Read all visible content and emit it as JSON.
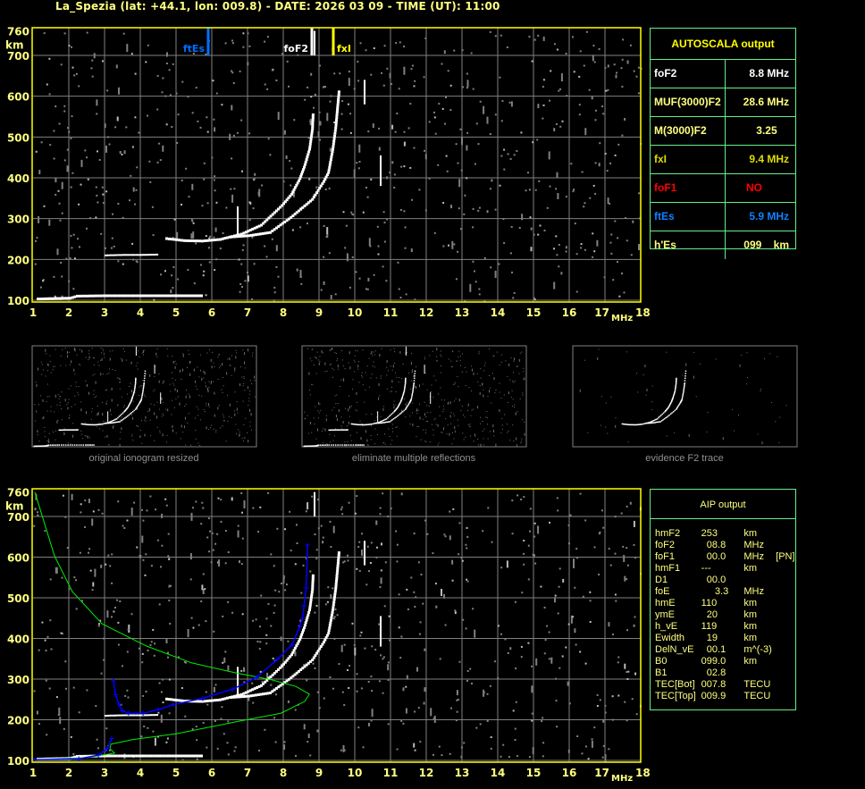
{
  "title": "La_Spezia (lat: +44.1, lon: 009.8) - DATE: 2026 03 09 - TIME (UT): 11:00",
  "colors": {
    "axis": "#ffff00",
    "grid": "#808080",
    "trace": "#ffffff",
    "noise": "#808080",
    "profile": "#0000ff",
    "model": "#00ee00",
    "ftEs": "#0070ff",
    "foF2": "#ffffff",
    "fxI": "#ffff00",
    "foF1": "#ff0000",
    "table_border": "#66ee88"
  },
  "chart_data": [
    {
      "type": "scatter",
      "name": "ionogram-autoscala",
      "xlabel": "MHz",
      "ylabel": "km",
      "xlim": [
        1,
        18
      ],
      "ylim": [
        100,
        760
      ],
      "xticks": [
        "1",
        "2",
        "3",
        "4",
        "5",
        "6",
        "7",
        "8",
        "9",
        "10",
        "11",
        "12",
        "13",
        "14",
        "15",
        "16",
        "17",
        "18"
      ],
      "yticks": [
        "100",
        "200",
        "300",
        "400",
        "500",
        "600",
        "700",
        "760"
      ],
      "grid": true,
      "markers": [
        {
          "label": "ftEs",
          "freq": 5.9,
          "color": "#0070ff"
        },
        {
          "label": "foF2",
          "freq": 8.8,
          "color": "#ffffff"
        },
        {
          "label": "fxI",
          "freq": 9.4,
          "color": "#ffff00"
        }
      ],
      "traces": {
        "es": [
          [
            1.1,
            103
          ],
          [
            1.5,
            104
          ],
          [
            2.0,
            105
          ],
          [
            2.2,
            110
          ],
          [
            3,
            111
          ],
          [
            4,
            111
          ],
          [
            5,
            111
          ],
          [
            5.75,
            111
          ]
        ],
        "f1": [
          [
            3,
            210
          ],
          [
            3.5,
            211
          ],
          [
            4,
            211
          ],
          [
            4.5,
            212
          ]
        ],
        "o": [
          [
            4.7,
            251
          ],
          [
            5.2,
            246
          ],
          [
            5.7,
            245
          ],
          [
            6.2,
            249
          ],
          [
            6.8,
            262
          ],
          [
            7.35,
            284
          ],
          [
            7.93,
            332
          ],
          [
            8.2,
            360
          ],
          [
            8.43,
            398
          ],
          [
            8.55,
            426
          ],
          [
            8.7,
            470
          ],
          [
            8.78,
            520
          ],
          [
            8.8,
            560
          ]
        ],
        "x": [
          [
            6.5,
            255
          ],
          [
            7.0,
            258
          ],
          [
            7.6,
            266
          ],
          [
            8.18,
            303
          ],
          [
            8.78,
            347
          ],
          [
            9.1,
            391
          ],
          [
            9.23,
            413
          ],
          [
            9.35,
            470
          ],
          [
            9.43,
            522
          ],
          [
            9.53,
            617
          ]
        ],
        "spikes": [
          [
            6.7,
            260,
            330
          ],
          [
            10.25,
            580,
            640
          ],
          [
            10.7,
            380,
            455
          ],
          [
            8.85,
            700,
            760
          ]
        ]
      }
    },
    {
      "type": "scatter",
      "name": "ionogram-aip",
      "xlabel": "MHz",
      "ylabel": "km",
      "xlim": [
        1,
        18
      ],
      "ylim": [
        100,
        760
      ],
      "xticks": [
        "1",
        "2",
        "3",
        "4",
        "5",
        "6",
        "7",
        "8",
        "9",
        "10",
        "11",
        "12",
        "13",
        "14",
        "15",
        "16",
        "17",
        "18"
      ],
      "yticks": [
        "100",
        "200",
        "300",
        "400",
        "500",
        "600",
        "700",
        "760"
      ],
      "grid": true,
      "model_curve": [
        [
          1.05,
          760
        ],
        [
          1.6,
          603
        ],
        [
          2.1,
          515
        ],
        [
          2.93,
          436
        ],
        [
          4.18,
          381
        ],
        [
          5.43,
          340
        ],
        [
          6.68,
          315
        ],
        [
          7.68,
          298
        ],
        [
          8.35,
          282
        ],
        [
          8.73,
          263
        ],
        [
          8.6,
          245
        ],
        [
          7.93,
          216
        ],
        [
          6.68,
          195
        ],
        [
          5.03,
          166
        ],
        [
          3.78,
          151
        ],
        [
          3.18,
          140
        ],
        [
          3.15,
          129
        ],
        [
          3.28,
          118
        ],
        [
          2.53,
          107
        ],
        [
          1.03,
          102
        ]
      ],
      "profile": [
        [
          1.03,
          102
        ],
        [
          2.28,
          104
        ],
        [
          2.83,
          113
        ],
        [
          3.08,
          130
        ],
        [
          3.2,
          154
        ],
        null,
        [
          3.25,
          296
        ],
        [
          3.31,
          261
        ],
        [
          3.4,
          238
        ],
        [
          3.5,
          222
        ],
        [
          3.67,
          216
        ],
        [
          4.08,
          216
        ],
        [
          4.5,
          225
        ],
        [
          4.92,
          237
        ],
        [
          5.75,
          253
        ],
        [
          6.58,
          275
        ],
        [
          7.25,
          304
        ],
        [
          7.83,
          348
        ],
        [
          8.25,
          385
        ],
        [
          8.46,
          429
        ],
        [
          8.54,
          451
        ],
        [
          8.58,
          480
        ],
        [
          8.64,
          524
        ],
        [
          8.68,
          630
        ]
      ]
    }
  ],
  "thumbnails": [
    {
      "label": "original ionogram resized"
    },
    {
      "label": "eliminate multiple reflections"
    },
    {
      "label": "evidence F2 trace"
    }
  ],
  "autoscala": {
    "title": "AUTOSCALA output",
    "rows": [
      {
        "key": "foF2",
        "value": "8.8 MHz",
        "color": "#ffffff"
      },
      {
        "key": "MUF(3000)F2",
        "value": "28.6 MHz",
        "color": "#ffff80"
      },
      {
        "key": "M(3000)F2",
        "value": "3.25    ",
        "color": "#ffff80"
      },
      {
        "key": "fxI",
        "value": "9.4 MHz",
        "color": "#dddd00"
      },
      {
        "key": "foF1",
        "value": "NO         ",
        "color": "#ff0000"
      },
      {
        "key": "ftEs",
        "value": "5.9 MHz",
        "color": "#1080ff"
      },
      {
        "key": "h'Es",
        "value": "099    km",
        "color": "#ffff80"
      }
    ]
  },
  "aip": {
    "title": "AIP output",
    "rows": [
      {
        "k": "hmF2",
        "v": "253",
        "u": "km",
        "x": ""
      },
      {
        "k": "foF2",
        "v": "  08.8",
        "u": "MHz",
        "x": ""
      },
      {
        "k": "foF1",
        "v": "  00.0",
        "u": "MHz",
        "x": "[PN]"
      },
      {
        "k": "hmF1",
        "v": "---",
        "u": "km",
        "x": ""
      },
      {
        "k": "D1",
        "v": "  00.0",
        "u": "",
        "x": ""
      },
      {
        "k": "foE",
        "v": "     3.3",
        "u": "MHz",
        "x": ""
      },
      {
        "k": "hmE",
        "v": "110",
        "u": "km",
        "x": ""
      },
      {
        "k": "ymE",
        "v": "  20",
        "u": "km",
        "x": ""
      },
      {
        "k": "h_vE",
        "v": "119",
        "u": "km",
        "x": ""
      },
      {
        "k": "Ewidth",
        "v": "  19",
        "u": "km",
        "x": ""
      },
      {
        "k": "DelN_vE",
        "v": "  00.1",
        "u": "m^(-3)",
        "x": ""
      },
      {
        "k": "B0",
        "v": "099.0",
        "u": "km",
        "x": ""
      },
      {
        "k": "B1",
        "v": "  02.8",
        "u": "",
        "x": ""
      },
      {
        "k": "TEC[Bot]",
        "v": "007.8",
        "u": "TECU",
        "x": ""
      },
      {
        "k": "TEC[Top]",
        "v": "009.9",
        "u": "TECU",
        "x": ""
      }
    ]
  }
}
